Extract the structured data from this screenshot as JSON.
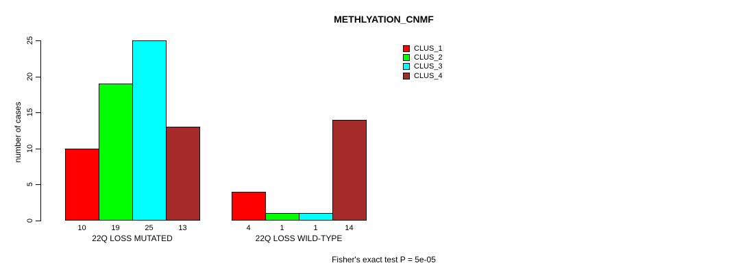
{
  "chart_data": {
    "type": "bar",
    "title": "METHLYATION_CNMF",
    "ylabel": "number of cases",
    "xlabel": "",
    "categories": [
      "22Q LOSS MUTATED",
      "22Q LOSS WILD-TYPE"
    ],
    "series": [
      {
        "name": "CLUS_1",
        "color": "#FF0000",
        "values": [
          10,
          4
        ]
      },
      {
        "name": "CLUS_2",
        "color": "#00FF00",
        "values": [
          19,
          1
        ]
      },
      {
        "name": "CLUS_3",
        "color": "#00FFFF",
        "values": [
          25,
          1
        ]
      },
      {
        "name": "CLUS_4",
        "color": "#A52A2A",
        "values": [
          13,
          14
        ]
      }
    ],
    "ylim": [
      0,
      25
    ],
    "yticks": [
      0,
      5,
      10,
      15,
      20,
      25
    ],
    "grid": false,
    "legend_position": "top-right",
    "bar_value_labels": true,
    "annotation": "Fisher's exact test P = 5e-05"
  }
}
